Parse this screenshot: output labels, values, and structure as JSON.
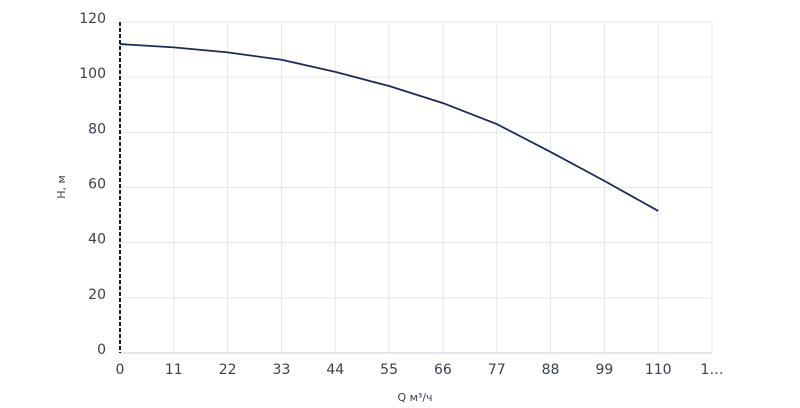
{
  "chart_data": {
    "type": "line",
    "x_label": "Q м³/ч",
    "y_label": "H, м",
    "x": [
      0,
      11,
      22,
      33,
      44,
      55,
      66,
      77,
      88,
      99,
      110
    ],
    "series": [
      {
        "name": "H",
        "color": "#1b2a5c",
        "values": [
          112,
          110.8,
          109,
          106.3,
          101.9,
          96.8,
          90.6,
          83,
          72.9,
          62.4,
          51.5
        ]
      }
    ],
    "xlim": [
      0,
      121
    ],
    "xticks": [
      0,
      11,
      22,
      33,
      44,
      55,
      66,
      77,
      88,
      99,
      110,
      {
        "value": 121,
        "label": "1…"
      }
    ],
    "ylim": [
      0,
      120
    ],
    "yticks": [
      0,
      20,
      40,
      60,
      80,
      100,
      120
    ],
    "grid": true
  }
}
